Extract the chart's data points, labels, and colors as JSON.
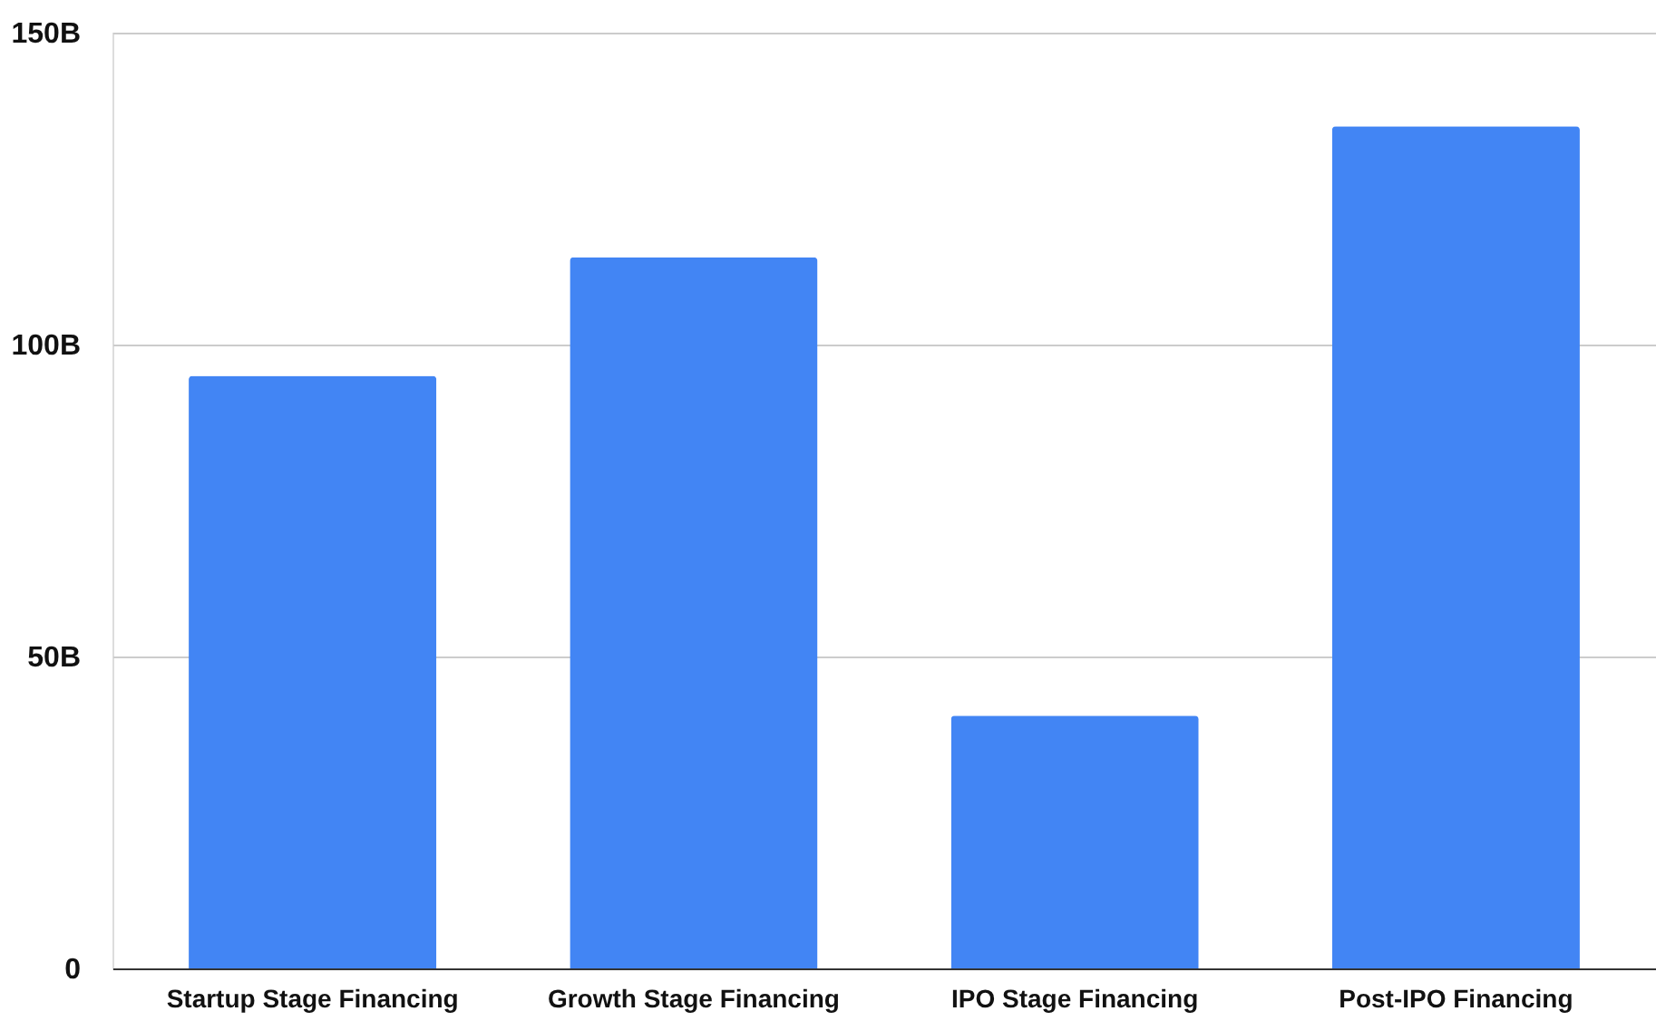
{
  "chart_data": {
    "type": "bar",
    "categories": [
      "Startup Stage Financing",
      "Growth Stage Financing",
      "IPO Stage Financing",
      "Post-IPO Financing"
    ],
    "values": [
      95,
      114,
      40.5,
      135
    ],
    "color": "#4285f4",
    "ylim": [
      0,
      150
    ],
    "yticks": [
      {
        "value": 0,
        "label": "0"
      },
      {
        "value": 50,
        "label": "50B"
      },
      {
        "value": 100,
        "label": "100B"
      },
      {
        "value": 150,
        "label": "150B"
      }
    ],
    "grid": "y"
  }
}
